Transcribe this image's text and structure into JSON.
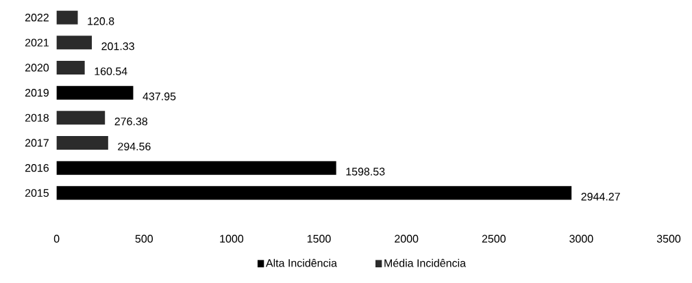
{
  "chart_data": {
    "type": "bar",
    "orientation": "horizontal",
    "categories": [
      "2022",
      "2021",
      "2020",
      "2019",
      "2018",
      "2017",
      "2016",
      "2015"
    ],
    "series": [
      {
        "name": "Alta Incidência",
        "color": "#000000",
        "values": [
          null,
          null,
          null,
          437.95,
          null,
          null,
          1598.53,
          2944.27
        ]
      },
      {
        "name": "Média Incidência",
        "color": "#2b2b2b",
        "values": [
          120.8,
          201.33,
          160.54,
          null,
          276.38,
          294.56,
          null,
          null
        ]
      }
    ],
    "xlim": [
      0,
      3500
    ],
    "xticks": [
      0,
      500,
      1000,
      1500,
      2000,
      2500,
      3000,
      3500
    ],
    "data_labels": true,
    "legend": "bottom",
    "grid": false
  }
}
